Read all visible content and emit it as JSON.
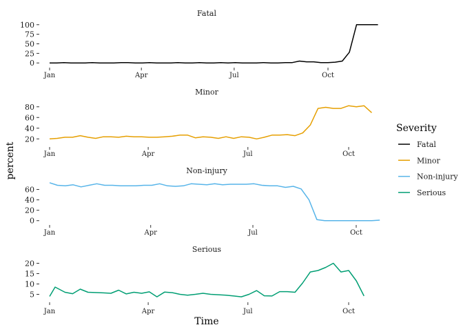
{
  "chart_data": {
    "type": "line",
    "xlabel": "Time",
    "ylabel": "percent",
    "x_ticks": [
      "Jan",
      "Apr",
      "Jul",
      "Oct"
    ],
    "legend": {
      "title": "Severity",
      "placement": "right",
      "entries": [
        {
          "name": "Fatal",
          "color": "#000000"
        },
        {
          "name": "Minor",
          "color": "#E69F00"
        },
        {
          "name": "Non-injury",
          "color": "#56B4E9"
        },
        {
          "name": "Serious",
          "color": "#009E73"
        }
      ]
    },
    "panels": [
      {
        "title": "Fatal",
        "color": "#000000",
        "x_start": "2021-01-01",
        "x_ticks_at": [
          "2021-01-01",
          "2021-04-01",
          "2021-07-01",
          "2021-10-01"
        ],
        "ylim": [
          -5,
          105
        ],
        "y_ticks": [
          0,
          25,
          50,
          75,
          100
        ],
        "points": [
          [
            "2021-01-01",
            0
          ],
          [
            "2021-01-08",
            0
          ],
          [
            "2021-01-15",
            1
          ],
          [
            "2021-01-22",
            0
          ],
          [
            "2021-01-29",
            0
          ],
          [
            "2021-02-05",
            0
          ],
          [
            "2021-02-12",
            1
          ],
          [
            "2021-02-19",
            0
          ],
          [
            "2021-02-26",
            0
          ],
          [
            "2021-03-05",
            0
          ],
          [
            "2021-03-12",
            1
          ],
          [
            "2021-03-19",
            1
          ],
          [
            "2021-03-26",
            0
          ],
          [
            "2021-04-02",
            0
          ],
          [
            "2021-04-09",
            1
          ],
          [
            "2021-04-16",
            0
          ],
          [
            "2021-04-23",
            0
          ],
          [
            "2021-04-30",
            0
          ],
          [
            "2021-05-07",
            1
          ],
          [
            "2021-05-14",
            0
          ],
          [
            "2021-05-21",
            0
          ],
          [
            "2021-05-28",
            1
          ],
          [
            "2021-06-04",
            0
          ],
          [
            "2021-06-11",
            0
          ],
          [
            "2021-06-18",
            1
          ],
          [
            "2021-06-25",
            0
          ],
          [
            "2021-07-02",
            1
          ],
          [
            "2021-07-09",
            0
          ],
          [
            "2021-07-16",
            0
          ],
          [
            "2021-07-23",
            0
          ],
          [
            "2021-07-30",
            1
          ],
          [
            "2021-08-06",
            0
          ],
          [
            "2021-08-13",
            0
          ],
          [
            "2021-08-20",
            1
          ],
          [
            "2021-08-27",
            1
          ],
          [
            "2021-09-03",
            5
          ],
          [
            "2021-09-10",
            3
          ],
          [
            "2021-09-17",
            3
          ],
          [
            "2021-09-24",
            1
          ],
          [
            "2021-10-01",
            1
          ],
          [
            "2021-10-08",
            2
          ],
          [
            "2021-10-15",
            5
          ],
          [
            "2021-10-22",
            28
          ],
          [
            "2021-10-29",
            100
          ],
          [
            "2021-11-05",
            100
          ],
          [
            "2021-11-12",
            100
          ],
          [
            "2021-11-19",
            100
          ]
        ]
      },
      {
        "title": "Minor",
        "color": "#E69F00",
        "x_start": "2021-01-01",
        "x_ticks_at": [
          "2021-01-01",
          "2021-04-01",
          "2021-07-01",
          "2021-10-01"
        ],
        "ylim": [
          10,
          90
        ],
        "y_ticks": [
          20,
          40,
          60,
          80
        ],
        "points": [
          [
            "2021-01-01",
            20
          ],
          [
            "2021-01-08",
            21
          ],
          [
            "2021-01-15",
            23
          ],
          [
            "2021-01-22",
            23
          ],
          [
            "2021-01-29",
            26
          ],
          [
            "2021-02-05",
            23
          ],
          [
            "2021-02-12",
            21
          ],
          [
            "2021-02-19",
            24
          ],
          [
            "2021-02-26",
            24
          ],
          [
            "2021-03-05",
            23
          ],
          [
            "2021-03-12",
            25
          ],
          [
            "2021-03-19",
            24
          ],
          [
            "2021-03-26",
            24
          ],
          [
            "2021-04-02",
            23
          ],
          [
            "2021-04-09",
            23
          ],
          [
            "2021-04-16",
            24
          ],
          [
            "2021-04-23",
            25
          ],
          [
            "2021-04-30",
            27
          ],
          [
            "2021-05-07",
            27
          ],
          [
            "2021-05-14",
            22
          ],
          [
            "2021-05-21",
            24
          ],
          [
            "2021-05-28",
            23
          ],
          [
            "2021-06-04",
            21
          ],
          [
            "2021-06-11",
            24
          ],
          [
            "2021-06-18",
            21
          ],
          [
            "2021-06-25",
            24
          ],
          [
            "2021-07-02",
            23
          ],
          [
            "2021-07-09",
            20
          ],
          [
            "2021-07-16",
            23
          ],
          [
            "2021-07-23",
            27
          ],
          [
            "2021-07-30",
            27
          ],
          [
            "2021-08-06",
            28
          ],
          [
            "2021-08-13",
            26
          ],
          [
            "2021-08-20",
            31
          ],
          [
            "2021-08-27",
            46
          ],
          [
            "2021-09-03",
            77
          ],
          [
            "2021-09-10",
            79
          ],
          [
            "2021-09-17",
            77
          ],
          [
            "2021-09-24",
            77
          ],
          [
            "2021-10-01",
            82
          ],
          [
            "2021-10-08",
            80
          ],
          [
            "2021-10-15",
            82
          ],
          [
            "2021-10-22",
            69
          ]
        ]
      },
      {
        "title": "Non-injury",
        "color": "#56B4E9",
        "x_start": "2021-01-01",
        "x_ticks_at": [
          "2021-01-01",
          "2021-04-01",
          "2021-07-01",
          "2021-10-01"
        ],
        "ylim": [
          -3,
          78
        ],
        "y_ticks": [
          0,
          20,
          40,
          60
        ],
        "points": [
          [
            "2021-01-01",
            73
          ],
          [
            "2021-01-08",
            68
          ],
          [
            "2021-01-15",
            67
          ],
          [
            "2021-01-22",
            69
          ],
          [
            "2021-01-29",
            65
          ],
          [
            "2021-02-05",
            68
          ],
          [
            "2021-02-12",
            71
          ],
          [
            "2021-02-19",
            68
          ],
          [
            "2021-02-26",
            68
          ],
          [
            "2021-03-05",
            67
          ],
          [
            "2021-03-12",
            67
          ],
          [
            "2021-03-19",
            67
          ],
          [
            "2021-03-26",
            68
          ],
          [
            "2021-04-02",
            68
          ],
          [
            "2021-04-09",
            71
          ],
          [
            "2021-04-16",
            67
          ],
          [
            "2021-04-23",
            66
          ],
          [
            "2021-04-30",
            67
          ],
          [
            "2021-05-07",
            71
          ],
          [
            "2021-05-14",
            70
          ],
          [
            "2021-05-21",
            69
          ],
          [
            "2021-05-28",
            71
          ],
          [
            "2021-06-04",
            69
          ],
          [
            "2021-06-11",
            70
          ],
          [
            "2021-06-18",
            70
          ],
          [
            "2021-06-25",
            70
          ],
          [
            "2021-07-02",
            71
          ],
          [
            "2021-07-09",
            68
          ],
          [
            "2021-07-16",
            67
          ],
          [
            "2021-07-23",
            67
          ],
          [
            "2021-07-30",
            64
          ],
          [
            "2021-08-06",
            66
          ],
          [
            "2021-08-13",
            61
          ],
          [
            "2021-08-20",
            40
          ],
          [
            "2021-08-27",
            2
          ],
          [
            "2021-09-03",
            0
          ],
          [
            "2021-09-10",
            0
          ],
          [
            "2021-09-17",
            0
          ],
          [
            "2021-09-24",
            0
          ],
          [
            "2021-10-01",
            0
          ],
          [
            "2021-10-08",
            0
          ],
          [
            "2021-10-15",
            0
          ],
          [
            "2021-10-22",
            1
          ]
        ]
      },
      {
        "title": "Serious",
        "color": "#009E73",
        "x_start": "2021-01-01",
        "x_ticks_at": [
          "2021-01-01",
          "2021-04-01",
          "2021-07-01",
          "2021-10-01"
        ],
        "ylim": [
          2.5,
          22.5
        ],
        "y_ticks": [
          5,
          10,
          15,
          20
        ],
        "points": [
          [
            "2021-01-01",
            4
          ],
          [
            "2021-01-06",
            8.5
          ],
          [
            "2021-01-15",
            6
          ],
          [
            "2021-01-22",
            5.3
          ],
          [
            "2021-01-29",
            7.5
          ],
          [
            "2021-02-05",
            6
          ],
          [
            "2021-02-19",
            5.7
          ],
          [
            "2021-02-26",
            5.5
          ],
          [
            "2021-03-05",
            7
          ],
          [
            "2021-03-12",
            5.2
          ],
          [
            "2021-03-19",
            6
          ],
          [
            "2021-03-26",
            5.5
          ],
          [
            "2021-04-02",
            6.2
          ],
          [
            "2021-04-09",
            3.8
          ],
          [
            "2021-04-16",
            6.1
          ],
          [
            "2021-04-23",
            5.8
          ],
          [
            "2021-04-30",
            5
          ],
          [
            "2021-05-07",
            4.6
          ],
          [
            "2021-05-14",
            5
          ],
          [
            "2021-05-21",
            5.5
          ],
          [
            "2021-05-28",
            5
          ],
          [
            "2021-06-11",
            4.6
          ],
          [
            "2021-06-18",
            4.2
          ],
          [
            "2021-06-25",
            3.8
          ],
          [
            "2021-07-02",
            5
          ],
          [
            "2021-07-09",
            6.8
          ],
          [
            "2021-07-16",
            4.3
          ],
          [
            "2021-07-23",
            4.2
          ],
          [
            "2021-07-30",
            6.3
          ],
          [
            "2021-08-06",
            6.3
          ],
          [
            "2021-08-13",
            6
          ],
          [
            "2021-08-20",
            10.5
          ],
          [
            "2021-08-27",
            15.8
          ],
          [
            "2021-09-03",
            16.5
          ],
          [
            "2021-09-10",
            18
          ],
          [
            "2021-09-17",
            20
          ],
          [
            "2021-09-24",
            15.8
          ],
          [
            "2021-10-01",
            16.5
          ],
          [
            "2021-10-08",
            11.5
          ],
          [
            "2021-10-15",
            4.2
          ]
        ]
      }
    ]
  }
}
